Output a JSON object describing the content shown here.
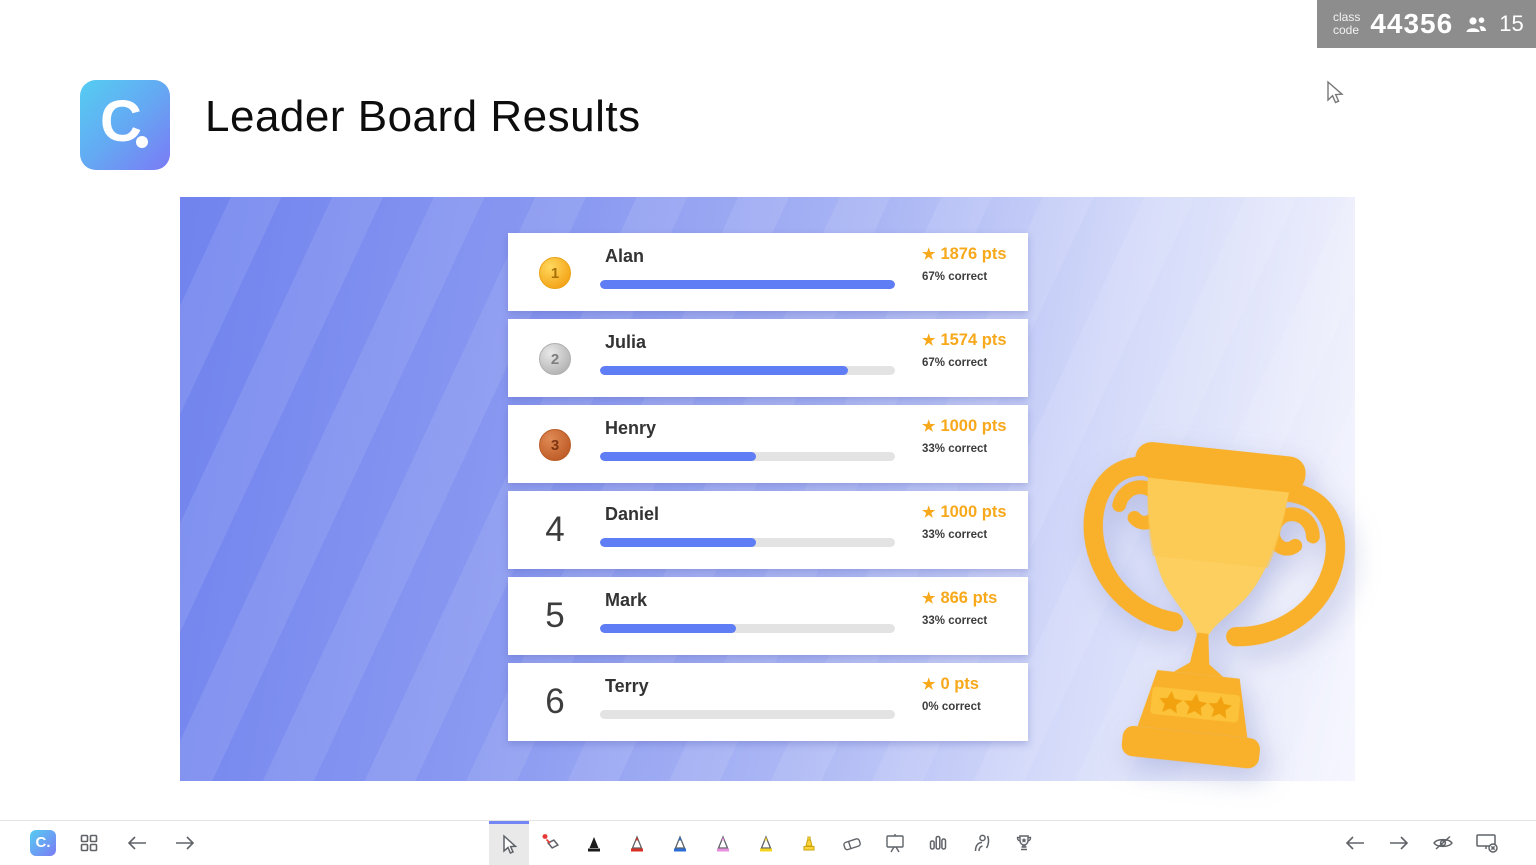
{
  "header": {
    "title": "Leader Board Results",
    "logo_letter": "C",
    "class_code_label_line1": "class",
    "class_code_label_line2": "code",
    "class_code": "44356",
    "participant_count": "15"
  },
  "leaderboard": {
    "star_glyph": "★",
    "rows": [
      {
        "rank": "1",
        "medal": "gold",
        "name": "Alan",
        "points": "1876 pts",
        "percent": "67% correct",
        "progress": 100
      },
      {
        "rank": "2",
        "medal": "silver",
        "name": "Julia",
        "points": "1574 pts",
        "percent": "67% correct",
        "progress": 84
      },
      {
        "rank": "3",
        "medal": "bronze",
        "name": "Henry",
        "points": "1000 pts",
        "percent": "33% correct",
        "progress": 53
      },
      {
        "rank": "4",
        "medal": "none",
        "name": "Daniel",
        "points": "1000 pts",
        "percent": "33% correct",
        "progress": 53
      },
      {
        "rank": "5",
        "medal": "none",
        "name": "Mark",
        "points": "866 pts",
        "percent": "33% correct",
        "progress": 46
      },
      {
        "rank": "6",
        "medal": "none",
        "name": "Terry",
        "points": "0 pts",
        "percent": "0% correct",
        "progress": 0
      }
    ]
  },
  "colors": {
    "accent_blue": "#5f7df5",
    "points_orange": "#f7a81b",
    "slide_gradient_start": "#7083ee",
    "slide_gradient_end": "#f5f6fe",
    "badge_gray": "#8d8d8d",
    "trophy_gold": "#f9b02a",
    "trophy_light": "#fccf5e"
  },
  "toolbar": {
    "left_icons": [
      "classpoint-logo",
      "grid-icon",
      "back-arrow-icon",
      "forward-arrow-icon"
    ],
    "mid_icons": [
      "cursor-tool",
      "laser-pointer",
      "pen-black",
      "pen-red",
      "pen-blue",
      "pen-pink",
      "pen-yellow",
      "highlighter",
      "eraser",
      "whiteboard",
      "poll-chart",
      "pick-a-name",
      "award-trophy"
    ],
    "right_icons": [
      "back-arrow-icon",
      "forward-arrow-icon",
      "hide-toolbar-eye",
      "close-slideshow"
    ],
    "selected_tool": "cursor-tool"
  }
}
